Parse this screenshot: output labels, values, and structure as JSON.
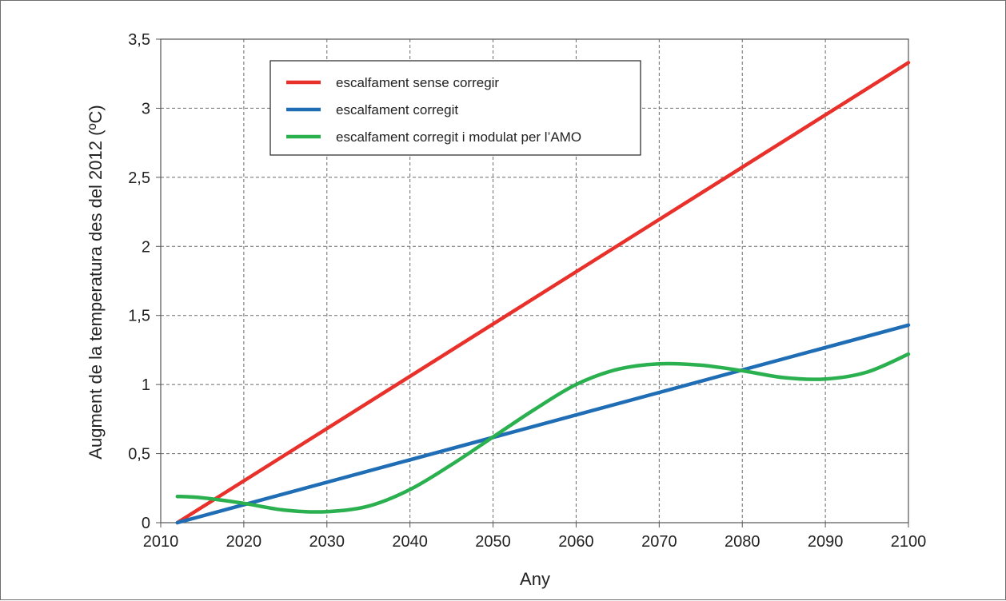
{
  "chart_data": {
    "type": "line",
    "title": "",
    "xlabel": "Any",
    "ylabel": "Augment de la temperatura des del 2012 (ºC)",
    "xlim": [
      2010,
      2100
    ],
    "ylim": [
      0,
      3.5
    ],
    "x_ticks": [
      2010,
      2020,
      2030,
      2040,
      2050,
      2060,
      2070,
      2080,
      2090,
      2100
    ],
    "y_ticks": [
      0,
      0.5,
      1,
      1.5,
      2,
      2.5,
      3,
      3.5
    ],
    "y_tick_labels": [
      "0",
      "0,5",
      "1",
      "1,5",
      "2",
      "2,5",
      "3",
      "3,5"
    ],
    "grid": true,
    "legend_position": "top-left",
    "series": [
      {
        "name": "escalfament sense corregir",
        "color": "#e8312a",
        "x": [
          2012,
          2100
        ],
        "y": [
          0,
          3.33
        ]
      },
      {
        "name": "escalfament corregit",
        "color": "#1f6db5",
        "x": [
          2012,
          2100
        ],
        "y": [
          0,
          1.43
        ]
      },
      {
        "name": "escalfament corregit i modulat per l’AMO",
        "color": "#2ab04f",
        "x": [
          2012,
          2015,
          2020,
          2025,
          2030,
          2035,
          2040,
          2045,
          2050,
          2055,
          2060,
          2065,
          2070,
          2075,
          2080,
          2085,
          2090,
          2095,
          2100
        ],
        "y": [
          0.19,
          0.18,
          0.14,
          0.09,
          0.08,
          0.12,
          0.24,
          0.42,
          0.62,
          0.82,
          1.0,
          1.11,
          1.15,
          1.14,
          1.1,
          1.05,
          1.04,
          1.09,
          1.22
        ]
      }
    ]
  }
}
